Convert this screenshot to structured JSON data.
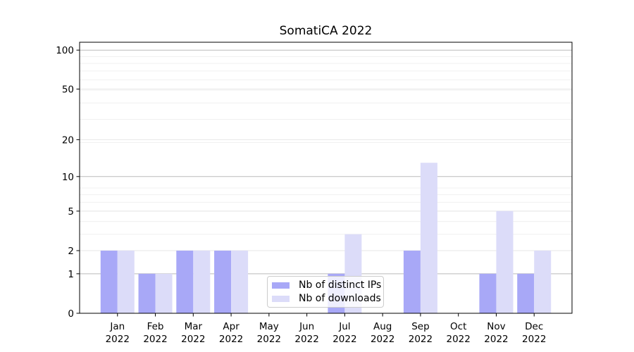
{
  "title": "SomatiCA 2022",
  "chart_data": {
    "type": "bar",
    "title": "SomatiCA 2022",
    "categories": [
      "Jan",
      "Feb",
      "Mar",
      "Apr",
      "May",
      "Jun",
      "Jul",
      "Aug",
      "Sep",
      "Oct",
      "Nov",
      "Dec"
    ],
    "year_label": "2022",
    "series": [
      {
        "name": "Nb of distinct IPs",
        "color": "#a8a8f7",
        "values": [
          2,
          1,
          2,
          2,
          0,
          0,
          1,
          0,
          2,
          0,
          1,
          1
        ]
      },
      {
        "name": "Nb of downloads",
        "color": "#dcdcf9",
        "values": [
          2,
          1,
          2,
          2,
          0,
          0,
          3,
          0,
          13,
          0,
          5,
          2
        ]
      }
    ],
    "yticks": [
      0,
      1,
      2,
      5,
      10,
      20,
      50,
      100
    ],
    "yaxis_scale": "log1p",
    "ylim": [
      0,
      115
    ],
    "xlabel": "",
    "ylabel": "",
    "grid": true,
    "legend_position": "lower center",
    "colors": {
      "major_gridline": "#bcbcbc",
      "labeled_gridline": "#e7e7e7",
      "minor_gridline": "#f0f0f0",
      "spine": "#000000",
      "text": "#000000"
    }
  }
}
